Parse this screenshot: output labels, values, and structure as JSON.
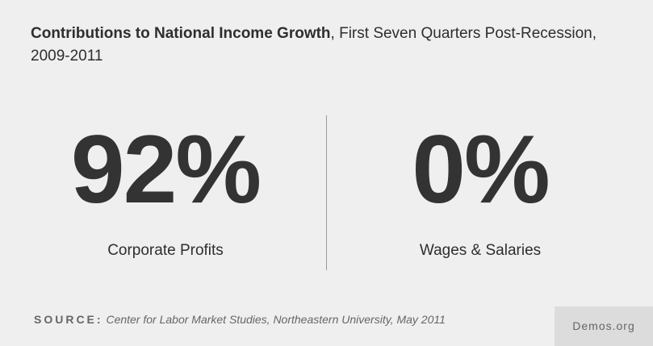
{
  "title": {
    "bold": "Contributions to National Income Growth",
    "rest": ", First Seven Quarters Post-Recession, 2009-2011"
  },
  "stats": [
    {
      "value": "92%",
      "label": "Corporate Profits"
    },
    {
      "value": "0%",
      "label": "Wages & Salaries"
    }
  ],
  "source": {
    "label": "SOURCE:",
    "text": "Center for Labor Market Studies, Northeastern University, May 2011"
  },
  "brand": "Demos.org"
}
